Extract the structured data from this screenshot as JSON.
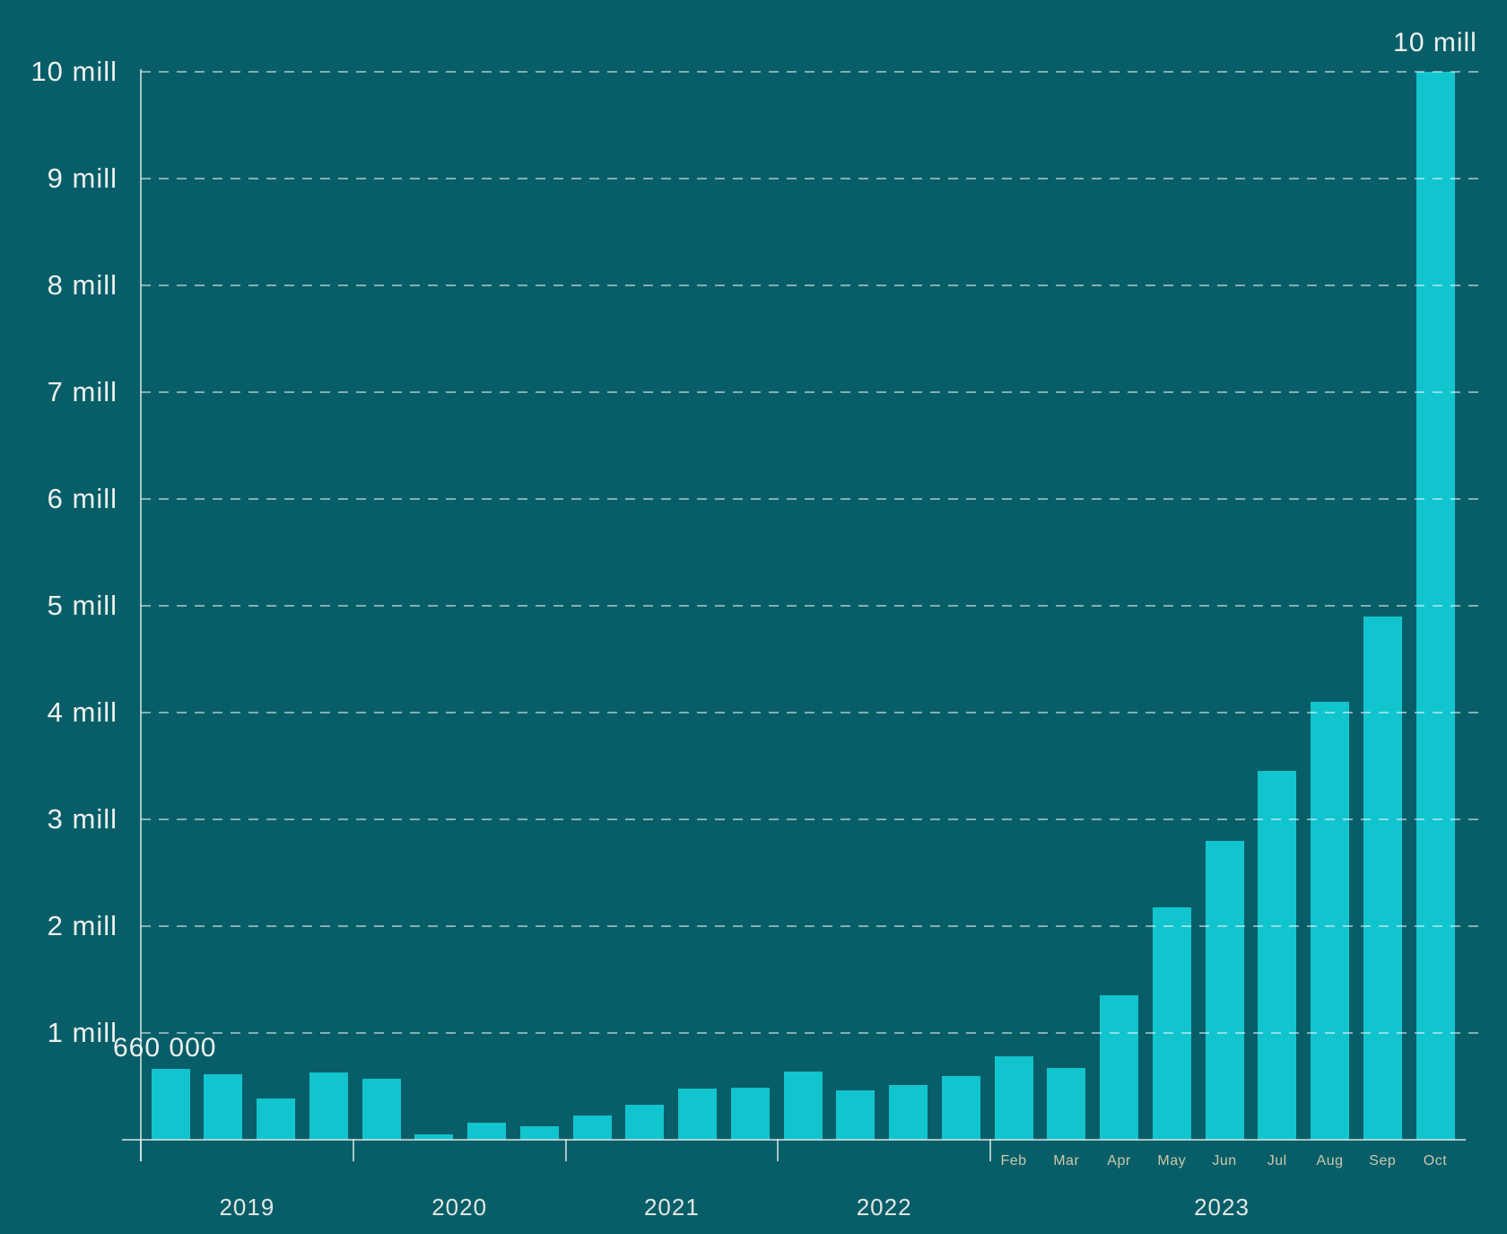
{
  "chart_data": {
    "type": "bar",
    "title": "",
    "y_axis": {
      "tick_labels": [
        "1 mill",
        "2 mill",
        "3 mill",
        "4 mill",
        "5 mill",
        "6 mill",
        "7 mill",
        "8 mill",
        "9 mill",
        "10 mill"
      ],
      "range": [
        0,
        10000000
      ],
      "gridlines": [
        1000000,
        2000000,
        3000000,
        4000000,
        5000000,
        6000000,
        7000000,
        8000000,
        9000000,
        10000000
      ],
      "grid_style": "dashed"
    },
    "x_axis": {
      "year_groups": [
        {
          "year": "2019",
          "values": [
            660000,
            610000,
            390000,
            630000
          ]
        },
        {
          "year": "2020",
          "values": [
            570000,
            50000,
            160000,
            130000
          ]
        },
        {
          "year": "2021",
          "values": [
            230000,
            330000,
            480000,
            490000
          ]
        },
        {
          "year": "2022",
          "values": [
            640000,
            460000,
            510000,
            600000
          ]
        },
        {
          "year": "2023",
          "months": [
            "Feb",
            "Mar",
            "Apr",
            "May",
            "Jun",
            "Jul",
            "Aug",
            "Sep",
            "Oct"
          ],
          "values": [
            780000,
            670000,
            1350000,
            2180000,
            2800000,
            3450000,
            4100000,
            4900000,
            10000000
          ]
        }
      ]
    },
    "annotations": [
      {
        "text": "660 000",
        "target": "first-bar"
      },
      {
        "text": "10 mill",
        "target": "last-bar"
      }
    ],
    "legend": null,
    "colors": {
      "background": "#075E68",
      "bar": "#12C4CE",
      "grid": "rgba(255,255,255,0.5)",
      "axis": "rgba(222,232,230,0.75)",
      "y_label": "#EDF1EE",
      "year_label": "#E2E7E3",
      "month_label": "#CCC8AC",
      "annotation": "#EDF1EE"
    }
  }
}
